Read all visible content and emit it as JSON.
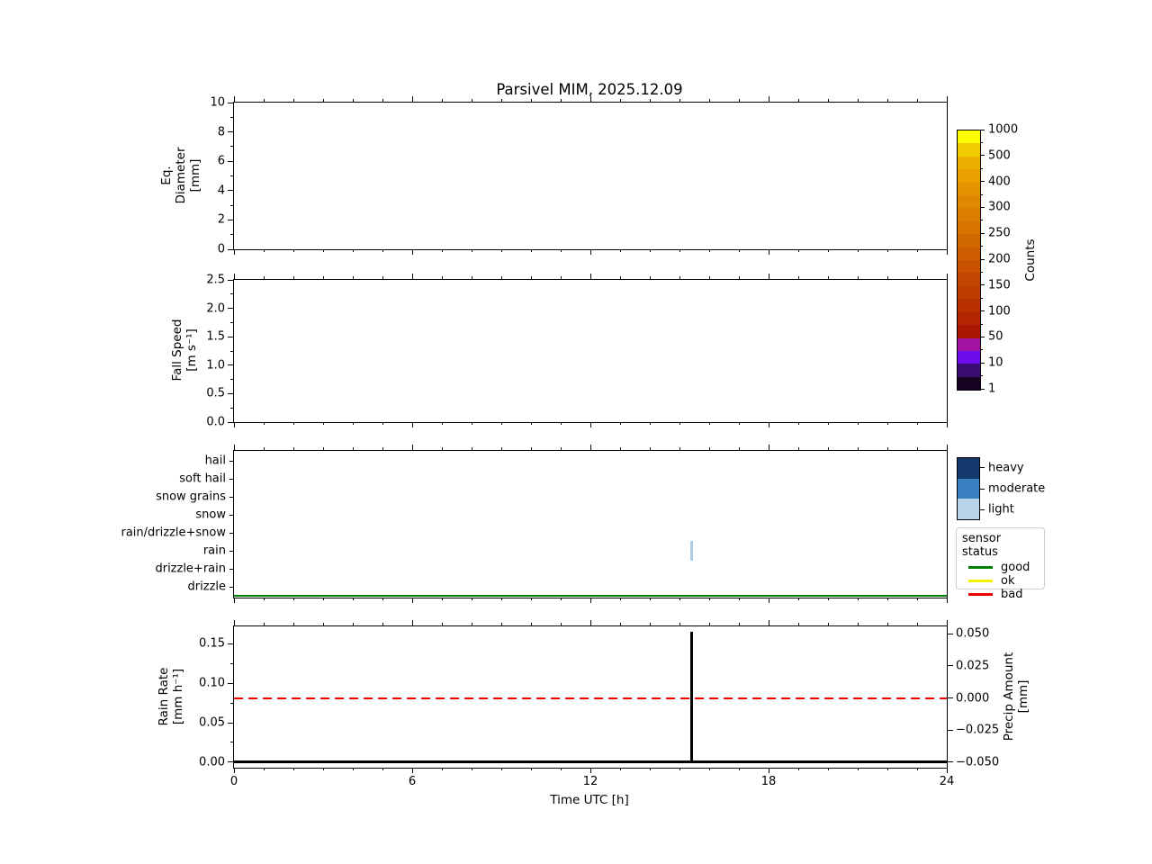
{
  "title": "Parsivel MIM, 2025.12.09",
  "xlabel": "Time UTC [h]",
  "xaxis": {
    "min": 0,
    "max": 24,
    "major_values": [
      0,
      6,
      12,
      18,
      24
    ],
    "major_labels": [
      "0",
      "6",
      "12",
      "18",
      "24"
    ],
    "minor_step_h": 1
  },
  "panels": [
    {
      "key": "p1",
      "ylabel_lines": [
        "Eq.",
        "Diameter",
        "[mm]"
      ],
      "ylim": [
        0,
        10
      ],
      "ytick_values": [
        0,
        2,
        4,
        6,
        8,
        10
      ],
      "ytick_labels": [
        "0",
        "2",
        "4",
        "6",
        "8",
        "10"
      ],
      "yminor_values": [
        1,
        3,
        5,
        7,
        9
      ]
    },
    {
      "key": "p2",
      "ylabel_lines": [
        "Fall Speed",
        "[m s⁻¹]"
      ],
      "ylim": [
        0,
        2.5
      ],
      "ytick_values": [
        0,
        0.5,
        1.0,
        1.5,
        2.0,
        2.5
      ],
      "ytick_labels": [
        "0.0",
        "0.5",
        "1.0",
        "1.5",
        "2.0",
        "2.5"
      ],
      "yminor_values": [
        0.25,
        0.75,
        1.25,
        1.75,
        2.25
      ]
    },
    {
      "key": "p3",
      "categories": [
        "hail",
        "soft hail",
        "snow grains",
        "snow",
        "rain/drizzle+snow",
        "rain",
        "drizzle+rain",
        "drizzle"
      ]
    },
    {
      "key": "p4",
      "ylabel_lines": [
        "Rain Rate",
        "[mm h⁻¹]"
      ],
      "ylim": [
        -0.007,
        0.172
      ],
      "ytick_values": [
        0.0,
        0.05,
        0.1,
        0.15
      ],
      "ytick_labels": [
        "0.00",
        "0.05",
        "0.10",
        "0.15"
      ],
      "yminor_values": [
        0.025,
        0.075,
        0.125
      ],
      "right_label_lines": [
        "Precip Amount",
        "[mm]"
      ],
      "right_ylim": [
        -0.0542,
        0.0556
      ],
      "right_tick_values": [
        0.05,
        0.025,
        0.0,
        -0.025,
        -0.05
      ],
      "right_tick_labels": [
        "0.050",
        "0.025",
        "0.000",
        "−0.025",
        "−0.050"
      ]
    }
  ],
  "colorbar": {
    "label": "Counts",
    "tick_labels_top_to_bottom": [
      "1000",
      "500",
      "400",
      "300",
      "250",
      "200",
      "150",
      "100",
      "50",
      "10",
      "1"
    ],
    "colors_top_to_bottom": [
      "#fdfe01",
      "#f2ca01",
      "#edae00",
      "#e9a000",
      "#e49300",
      "#e08800",
      "#dc7e00",
      "#d77300",
      "#d26800",
      "#cd5d00",
      "#c85200",
      "#c34700",
      "#be3c00",
      "#b93100",
      "#b32500",
      "#ab1703",
      "#a513a2",
      "#6e0deb",
      "#3a0b71",
      "#170221"
    ]
  },
  "intensity_legend": {
    "items": [
      {
        "label": "heavy",
        "color": "#12386e"
      },
      {
        "label": "moderate",
        "color": "#3a80c1"
      },
      {
        "label": "light",
        "color": "#b7d4ea"
      }
    ]
  },
  "sensor_legend": {
    "title": "sensor status",
    "items": [
      {
        "label": "good",
        "color": "#008000"
      },
      {
        "label": "ok",
        "color": "#f3f300"
      },
      {
        "label": "bad",
        "color": "#ee0000"
      }
    ]
  },
  "marks": {
    "sensor_status_line": {
      "color": "#008000",
      "value": "good",
      "x_range_h": [
        0,
        24
      ]
    },
    "precip_type_event": {
      "x_h": 15.4,
      "category": "rain",
      "intensity": "light",
      "color": "#a9cee5"
    },
    "rain_rate_baseline": {
      "color": "#000000",
      "value_mm_h": 0.0
    },
    "rain_rate_spike": {
      "color": "#000000",
      "x_h": 15.4,
      "value_mm_h": 0.165
    },
    "precip_amount_line": {
      "color": "#ee0000",
      "style": "dashed",
      "value_mm": 0.0
    }
  },
  "chart_data": [
    {
      "type": "heatmap",
      "panel": "drop size distribution",
      "title": "Parsivel MIM, 2025.12.09",
      "ylabel": "Eq. Diameter [mm]",
      "ylim": [
        0,
        10
      ],
      "yticks": [
        0,
        2,
        4,
        6,
        8,
        10
      ],
      "xlim": [
        0,
        24
      ],
      "colorbar_label": "Counts",
      "colorbar_levels": [
        1,
        10,
        50,
        100,
        150,
        200,
        250,
        300,
        400,
        500,
        1000
      ],
      "values": [],
      "note": "no counts plotted (empty panel)"
    },
    {
      "type": "heatmap",
      "panel": "fall speed distribution",
      "ylabel": "Fall Speed [m s⁻¹]",
      "ylim": [
        0,
        2.5
      ],
      "yticks": [
        0.0,
        0.5,
        1.0,
        1.5,
        2.0,
        2.5
      ],
      "xlim": [
        0,
        24
      ],
      "values": [],
      "note": "no counts plotted (empty panel)"
    },
    {
      "type": "scatter",
      "panel": "precipitation type",
      "categories_top_to_bottom": [
        "hail",
        "soft hail",
        "snow grains",
        "snow",
        "rain/drizzle+snow",
        "rain",
        "drizzle+rain",
        "drizzle"
      ],
      "xlim": [
        0,
        24
      ],
      "events": [
        {
          "x": 15.4,
          "category": "rain",
          "intensity": "light"
        }
      ],
      "sensor_status_series": {
        "value": "good",
        "x": [
          0,
          24
        ],
        "color": "#008000"
      },
      "legend": {
        "intensity": [
          "heavy",
          "moderate",
          "light"
        ],
        "sensor_status": [
          "good",
          "ok",
          "bad"
        ],
        "legend_position": "right"
      },
      "grid": false
    },
    {
      "type": "line",
      "panel": "rain rate / precip amount",
      "xlabel": "Time UTC [h]",
      "xlim": [
        0,
        24
      ],
      "xticks": [
        0,
        6,
        12,
        18,
        24
      ],
      "series": [
        {
          "name": "rain rate",
          "axis": "left",
          "color": "#000000",
          "style": "solid",
          "ylabel": "Rain Rate [mm h⁻¹]",
          "yticks": [
            0.0,
            0.05,
            0.1,
            0.15
          ],
          "x": [
            0,
            15.4,
            15.4,
            15.4,
            24
          ],
          "y": [
            0.0,
            0.0,
            0.165,
            0.0,
            0.0
          ]
        },
        {
          "name": "precip amount",
          "axis": "right",
          "color": "#ee0000",
          "style": "dashed",
          "ylabel": "Precip Amount [mm]",
          "yticks": [
            0.05,
            0.025,
            0.0,
            -0.025,
            -0.05
          ],
          "x": [
            0,
            24
          ],
          "y": [
            0.0,
            0.0
          ]
        }
      ],
      "grid": false
    }
  ]
}
